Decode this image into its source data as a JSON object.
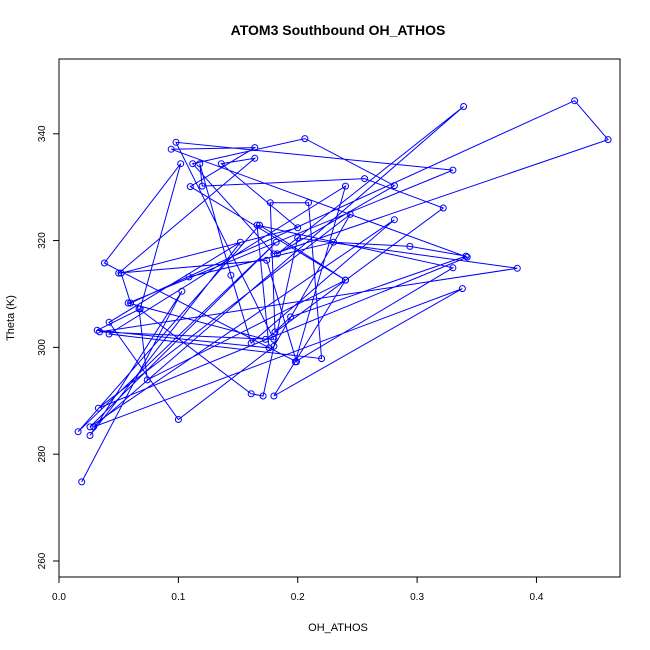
{
  "chart_data": {
    "type": "line",
    "title": "ATOM3 Southbound OH_ATHOS",
    "xlabel": "OH_ATHOS",
    "ylabel": "Theta (K)",
    "xlim": [
      0.0,
      0.47
    ],
    "ylim": [
      257,
      354
    ],
    "x_ticks": [
      0.0,
      0.1,
      0.2,
      0.3,
      0.4
    ],
    "x_tick_labels": [
      "0.0",
      "0.1",
      "0.2",
      "0.3",
      "0.4"
    ],
    "y_ticks": [
      260,
      280,
      300,
      320,
      340
    ],
    "y_tick_labels": [
      "260",
      "280",
      "300",
      "320",
      "340"
    ],
    "grid": false,
    "series_color": "#0000ff",
    "markers": "open-circle",
    "series": [
      {
        "x": [
          0.019,
          0.103,
          0.026,
          0.152,
          0.042,
          0.1,
          0.18,
          0.244,
          0.033,
          0.342,
          0.094,
          0.164,
          0.11,
          0.24,
          0.168,
          0.016,
          0.182,
          0.026,
          0.281,
          0.161,
          0.144,
          0.118,
          0.12,
          0.256,
          0.322,
          0.173,
          0.058,
          0.33,
          0.098,
          0.18,
          0.034,
          0.384,
          0.2,
          0.171,
          0.161,
          0.067,
          0.074,
          0.24,
          0.18,
          0.338,
          0.029,
          0.339,
          0.183,
          0.281,
          0.206,
          0.112,
          0.18,
          0.46,
          0.432,
          0.06,
          0.052,
          0.2,
          0.136,
          0.164,
          0.05,
          0.174,
          0.199,
          0.038,
          0.102,
          0.068,
          0.032,
          0.176,
          0.166,
          0.33,
          0.198,
          0.24,
          0.042,
          0.22,
          0.209,
          0.177,
          0.181,
          0.194,
          0.341,
          0.294,
          0.23,
          0.109
        ],
        "y": [
          274.8,
          310.5,
          283.5,
          319.7,
          304.7,
          286.5,
          300.2,
          324.9,
          288.6,
          316.9,
          337.1,
          337.4,
          330.1,
          312.6,
          322.9,
          284.2,
          319.7,
          285.1,
          323.9,
          300.8,
          313.5,
          334.4,
          330.2,
          331.6,
          326.1,
          301.5,
          308.3,
          333.2,
          338.4,
          301.5,
          302.9,
          314.8,
          320.5,
          290.9,
          291.3,
          307.2,
          293.9,
          312.6,
          290.9,
          311.0,
          285.1,
          345.1,
          317.5,
          330.3,
          339.1,
          334.4,
          317.5,
          338.9,
          346.2,
          308.3,
          313.9,
          322.4,
          334.4,
          335.4,
          313.9,
          316.3,
          297.3,
          315.8,
          334.4,
          307.2,
          303.2,
          299.9,
          322.9,
          314.9,
          297.3,
          330.2,
          302.5,
          297.9,
          327.1,
          327.1,
          302.9,
          305.7,
          317.1,
          318.9,
          319.7,
          313.2
        ]
      }
    ]
  }
}
